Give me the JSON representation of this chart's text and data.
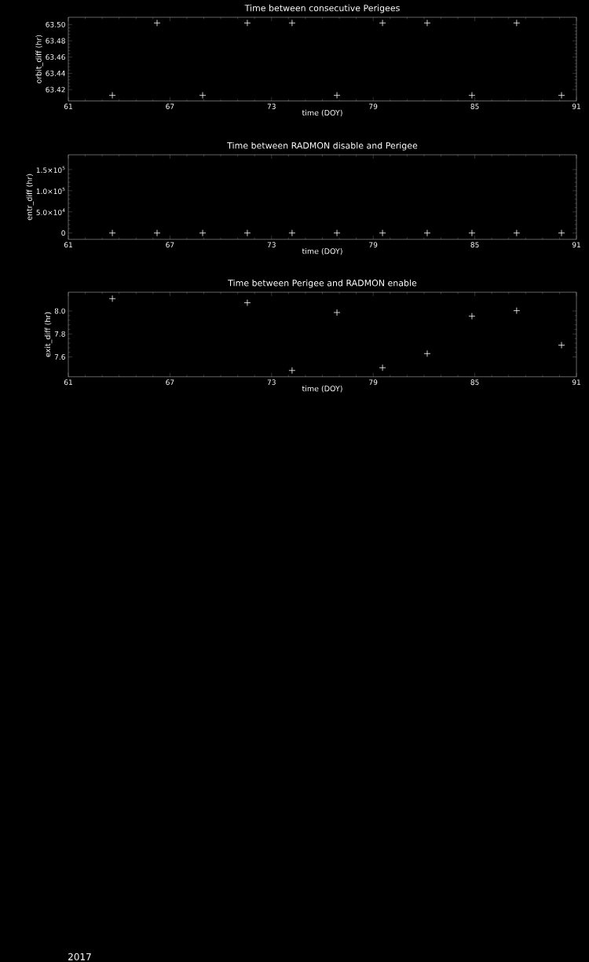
{
  "chart_data": [
    {
      "type": "scatter",
      "title": "Time between consecutive Perigees",
      "xlabel": "time (DOY)",
      "ylabel": "orbit_diff (hr)",
      "marker": "cross",
      "grid": false,
      "series": [
        {
          "color": "#ffffff",
          "x": [
            63.6,
            66.24,
            68.93,
            71.57,
            74.21,
            76.86,
            79.55,
            82.19,
            84.83,
            87.47,
            90.12
          ],
          "values": [
            63.413,
            63.502,
            63.413,
            63.502,
            63.502,
            63.413,
            63.502,
            63.502,
            63.413,
            63.502,
            63.413
          ]
        }
      ],
      "xlim": [
        61,
        91
      ],
      "xticks": [
        61,
        67,
        73,
        79,
        85,
        91
      ],
      "ylim": [
        63.406,
        63.509
      ],
      "yticks": [
        {
          "value": 63.42,
          "label": "63.42"
        },
        {
          "value": 63.44,
          "label": "63.44"
        },
        {
          "value": 63.46,
          "label": "63.46"
        },
        {
          "value": 63.48,
          "label": "63.48"
        },
        {
          "value": 63.5,
          "label": "63.50"
        }
      ]
    },
    {
      "type": "scatter",
      "title": "Time between RADMON disable and Perigee",
      "xlabel": "time (DOY)",
      "ylabel": "entr_diff (hr)",
      "marker": "cross",
      "grid": false,
      "series": [
        {
          "color": "#ffffff",
          "x": [
            63.6,
            66.24,
            68.93,
            71.57,
            74.21,
            76.86,
            79.55,
            82.19,
            84.83,
            87.47,
            90.12
          ],
          "values": [
            0,
            0,
            0,
            0,
            0,
            0,
            0,
            0,
            0,
            0,
            0
          ]
        }
      ],
      "xlim": [
        61,
        91
      ],
      "xticks": [
        61,
        67,
        73,
        79,
        85,
        91
      ],
      "ylim": [
        -15000,
        185000
      ],
      "yticks": [
        {
          "value": 0,
          "label": "0"
        },
        {
          "value": 50000,
          "label": "5.0×10$^{4}$"
        },
        {
          "value": 100000,
          "label": "1.0×10$^{5}$"
        },
        {
          "value": 150000,
          "label": "1.5×10$^{5}$"
        }
      ]
    },
    {
      "type": "scatter",
      "title": "Time between Perigee and RADMON enable",
      "xlabel": "time (DOY)",
      "ylabel": "exit_diff (hr)",
      "marker": "cross",
      "grid": false,
      "series": [
        {
          "color": "#ffffff",
          "x": [
            63.6,
            71.57,
            74.21,
            76.86,
            79.55,
            82.19,
            84.83,
            87.47,
            90.12
          ],
          "values": [
            8.108,
            8.072,
            7.482,
            7.987,
            7.506,
            7.629,
            7.955,
            8.003,
            7.703
          ]
        }
      ],
      "xlim": [
        61,
        91
      ],
      "xticks": [
        61,
        67,
        73,
        79,
        85,
        91
      ],
      "ylim": [
        7.427,
        8.164
      ],
      "yticks": [
        {
          "value": 7.6,
          "label": "7.6"
        },
        {
          "value": 7.8,
          "label": "7.8"
        },
        {
          "value": 8.0,
          "label": "8.0"
        }
      ],
      "annotations": [
        "2017"
      ]
    }
  ]
}
